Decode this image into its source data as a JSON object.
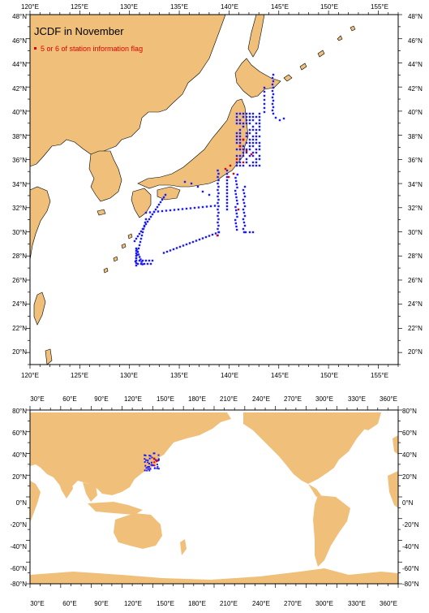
{
  "colors": {
    "land": "#f0c07a",
    "sea": "#ffffff",
    "station": "#1a1aff",
    "flag": "#e00000",
    "frame": "#000000"
  },
  "title": "JCDF in November",
  "legend_label": "5 or 6 of station information flag",
  "top_map": {
    "lon_labels": [
      "120°E",
      "125°E",
      "130°E",
      "135°E",
      "140°E",
      "145°E",
      "150°E",
      "155°E"
    ],
    "lat_labels": [
      "48°N",
      "46°N",
      "44°N",
      "42°N",
      "40°N",
      "38°N",
      "36°N",
      "34°N",
      "32°N",
      "30°N",
      "28°N",
      "26°N",
      "24°N",
      "22°N",
      "20°N"
    ]
  },
  "bottom_map": {
    "lon_labels": [
      "30°E",
      "60°E",
      "90°E",
      "120°E",
      "150°E",
      "180°E",
      "210°E",
      "240°E",
      "270°E",
      "300°E",
      "330°E",
      "360°E"
    ],
    "lat_labels": [
      "80°N",
      "60°N",
      "40°N",
      "20°N",
      "0°N",
      "-20°N",
      "-40°N",
      "-60°N",
      "-80°N"
    ]
  }
}
